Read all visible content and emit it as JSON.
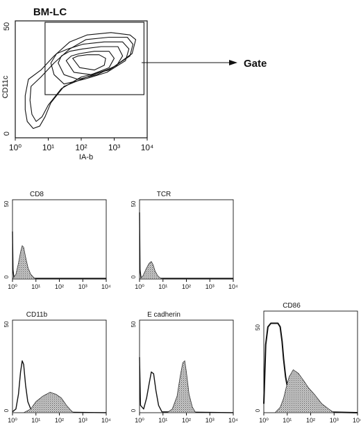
{
  "chart_data": [
    {
      "type": "contour",
      "title": "BM-LC",
      "xlabel": "IA-b",
      "ylabel": "CD11c",
      "x_scale": "log",
      "x_ticks": [
        "10⁰",
        "10¹",
        "10²",
        "10³",
        "10⁴"
      ],
      "y_ticks": [
        "0",
        "50"
      ],
      "gate_label": "Gate",
      "gate_x_range": [
        8,
        8000
      ],
      "contours": [
        {
          "level": 1,
          "points": [
            [
              2.5,
              25
            ],
            [
              2,
              18
            ],
            [
              2,
              12
            ],
            [
              2.3,
              7
            ],
            [
              3.5,
              4
            ],
            [
              5.5,
              5
            ],
            [
              8,
              9
            ],
            [
              12,
              15
            ],
            [
              30,
              22
            ],
            [
              150,
              26
            ],
            [
              900,
              30
            ],
            [
              3500,
              36
            ],
            [
              4500,
              42
            ],
            [
              3000,
              44
            ],
            [
              800,
              45
            ],
            [
              150,
              44
            ],
            [
              45,
              41
            ],
            [
              15,
              35
            ],
            [
              6,
              29
            ]
          ]
        },
        {
          "level": 2,
          "points": [
            [
              3,
              22
            ],
            [
              2.8,
              16
            ],
            [
              3.2,
              10
            ],
            [
              4.3,
              7
            ],
            [
              6.5,
              9
            ],
            [
              10,
              14
            ],
            [
              25,
              21
            ],
            [
              100,
              26
            ],
            [
              700,
              29
            ],
            [
              3000,
              35
            ],
            [
              3700,
              40
            ],
            [
              2500,
              43
            ],
            [
              700,
              43
            ],
            [
              140,
              42
            ],
            [
              45,
              38
            ],
            [
              15,
              32
            ],
            [
              6,
              26
            ]
          ]
        },
        {
          "level": 3,
          "points": [
            [
              12,
              32
            ],
            [
              15,
              27
            ],
            [
              30,
              23
            ],
            [
              120,
              25
            ],
            [
              600,
              28
            ],
            [
              2200,
              33
            ],
            [
              2800,
              38
            ],
            [
              1800,
              41
            ],
            [
              500,
              41
            ],
            [
              110,
              40
            ],
            [
              40,
              38
            ],
            [
              18,
              36
            ]
          ]
        },
        {
          "level": 4,
          "points": [
            [
              20,
              32
            ],
            [
              30,
              27
            ],
            [
              80,
              25
            ],
            [
              300,
              27
            ],
            [
              1200,
              31
            ],
            [
              1800,
              35
            ],
            [
              1300,
              39
            ],
            [
              400,
              39
            ],
            [
              110,
              38
            ],
            [
              45,
              37
            ],
            [
              25,
              35
            ]
          ]
        },
        {
          "level": 5,
          "points": [
            [
              35,
              33
            ],
            [
              60,
              28
            ],
            [
              200,
              27
            ],
            [
              700,
              30
            ],
            [
              1000,
              34
            ],
            [
              700,
              37
            ],
            [
              250,
              37
            ],
            [
              90,
              36
            ],
            [
              50,
              35
            ]
          ]
        },
        {
          "level": 6,
          "points": [
            [
              55,
              34
            ],
            [
              90,
              30
            ],
            [
              250,
              29
            ],
            [
              500,
              31
            ],
            [
              550,
              34
            ],
            [
              350,
              35.5
            ],
            [
              150,
              35.5
            ],
            [
              80,
              35
            ]
          ]
        }
      ]
    },
    {
      "type": "histogram",
      "title": "CD8",
      "x_scale": "log",
      "x_ticks": [
        "10⁰",
        "10¹",
        "10²",
        "10³",
        "10⁴"
      ],
      "y_ticks": [
        "0",
        "50"
      ],
      "ymax": 50,
      "series": [
        {
          "style": "control-line",
          "values": [
            [
              1,
              30
            ],
            [
              1.05,
              6
            ],
            [
              1.15,
              1
            ],
            [
              1.3,
              0.5
            ],
            [
              10000,
              0.5
            ]
          ]
        },
        {
          "style": "stained-filled",
          "values": [
            [
              1,
              0
            ],
            [
              1.4,
              3
            ],
            [
              1.8,
              10
            ],
            [
              2.2,
              17
            ],
            [
              2.6,
              21
            ],
            [
              3,
              20
            ],
            [
              3.6,
              14
            ],
            [
              4.6,
              7
            ],
            [
              6,
              3
            ],
            [
              8,
              1
            ],
            [
              10,
              0
            ]
          ]
        }
      ]
    },
    {
      "type": "histogram",
      "title": "TCR",
      "x_scale": "log",
      "x_ticks": [
        "10⁰",
        "10¹",
        "10²",
        "10³",
        "10⁴"
      ],
      "y_ticks": [
        "0",
        "50"
      ],
      "ymax": 50,
      "series": [
        {
          "style": "control-line",
          "values": [
            [
              1,
              42
            ],
            [
              1.05,
              6
            ],
            [
              1.15,
              1
            ],
            [
              1.3,
              0.5
            ],
            [
              10000,
              0.5
            ]
          ]
        },
        {
          "style": "stained-filled",
          "values": [
            [
              1,
              0
            ],
            [
              1.4,
              2
            ],
            [
              2,
              7
            ],
            [
              2.6,
              10
            ],
            [
              3.2,
              11
            ],
            [
              3.8,
              9
            ],
            [
              4.6,
              5
            ],
            [
              6,
              2
            ],
            [
              8,
              0.5
            ],
            [
              10,
              0
            ]
          ]
        }
      ]
    },
    {
      "type": "histogram",
      "title": "CD11b",
      "x_scale": "log",
      "x_ticks": [
        "10⁰",
        "10¹",
        "10²",
        "10³",
        "10⁴"
      ],
      "y_ticks": [
        "0",
        "50"
      ],
      "ymax": 50,
      "series": [
        {
          "style": "control-line",
          "values": [
            [
              1,
              0.5
            ],
            [
              1.4,
              2
            ],
            [
              1.8,
              10
            ],
            [
              2.2,
              22
            ],
            [
              2.6,
              28
            ],
            [
              3,
              26
            ],
            [
              3.6,
              15
            ],
            [
              4.5,
              6
            ],
            [
              6,
              2
            ],
            [
              8,
              0.5
            ],
            [
              10000,
              0
            ]
          ]
        },
        {
          "style": "stained-filled",
          "values": [
            [
              3,
              0
            ],
            [
              6,
              2
            ],
            [
              10,
              6
            ],
            [
              20,
              9
            ],
            [
              40,
              11
            ],
            [
              70,
              10
            ],
            [
              120,
              8
            ],
            [
              200,
              4
            ],
            [
              300,
              1.5
            ],
            [
              400,
              0
            ]
          ]
        }
      ]
    },
    {
      "type": "histogram",
      "title": "E cadherin",
      "x_scale": "log",
      "x_ticks": [
        "10⁰",
        "10¹",
        "10²",
        "10³",
        "10⁴"
      ],
      "y_ticks": [
        "0",
        "50"
      ],
      "ymax": 50,
      "series": [
        {
          "style": "control-line",
          "values": [
            [
              1,
              30
            ],
            [
              1.1,
              4
            ],
            [
              1.5,
              2
            ],
            [
              2,
              8
            ],
            [
              2.6,
              16
            ],
            [
              3.2,
              22
            ],
            [
              4,
              21
            ],
            [
              5,
              12
            ],
            [
              6.5,
              4
            ],
            [
              9,
              0.5
            ],
            [
              10000,
              0
            ]
          ]
        },
        {
          "style": "stained-filled",
          "values": [
            [
              15,
              0
            ],
            [
              25,
              2
            ],
            [
              40,
              9
            ],
            [
              55,
              20
            ],
            [
              70,
              27
            ],
            [
              85,
              28
            ],
            [
              100,
              22
            ],
            [
              130,
              10
            ],
            [
              180,
              3
            ],
            [
              250,
              0
            ]
          ]
        }
      ]
    },
    {
      "type": "histogram",
      "title": "CD86",
      "x_scale": "log",
      "x_ticks": [
        "10⁰",
        "10¹",
        "10²",
        "10³",
        "10⁴"
      ],
      "y_ticks": [
        "0",
        "50"
      ],
      "ymax": 50,
      "series": [
        {
          "style": "control-line",
          "values": [
            [
              1,
              5
            ],
            [
              1.2,
              38
            ],
            [
              1.5,
              48
            ],
            [
              2,
              50
            ],
            [
              3,
              50
            ],
            [
              4,
              50
            ],
            [
              5,
              48
            ],
            [
              6,
              40
            ],
            [
              7,
              30
            ],
            [
              8.5,
              20
            ],
            [
              11,
              12
            ],
            [
              15,
              6
            ],
            [
              25,
              3
            ],
            [
              50,
              1
            ],
            [
              200,
              0.5
            ],
            [
              10000,
              0
            ]
          ]
        },
        {
          "style": "stained-filled",
          "values": [
            [
              3,
              0
            ],
            [
              5,
              3
            ],
            [
              7,
              8
            ],
            [
              9,
              14
            ],
            [
              12,
              20
            ],
            [
              18,
              24
            ],
            [
              30,
              22
            ],
            [
              50,
              18
            ],
            [
              80,
              14
            ],
            [
              150,
              10
            ],
            [
              300,
              5
            ],
            [
              600,
              2
            ],
            [
              1000,
              0
            ]
          ]
        }
      ]
    }
  ]
}
